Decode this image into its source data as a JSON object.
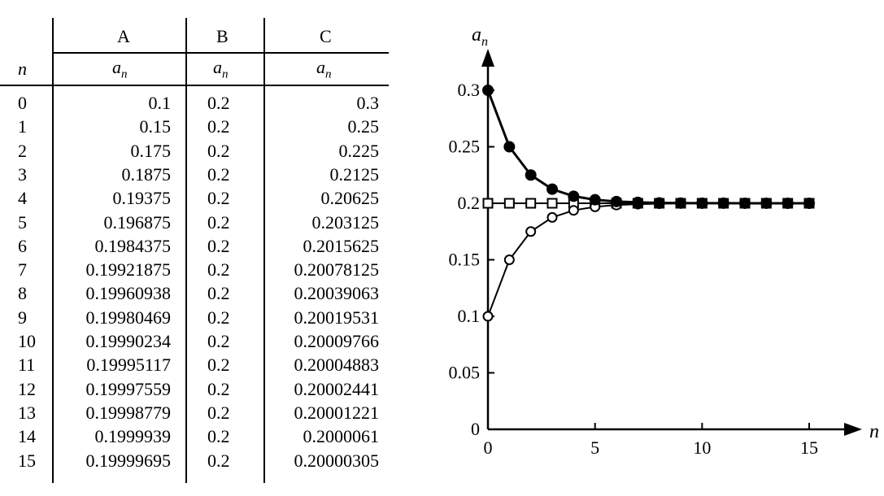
{
  "table": {
    "headers": {
      "n": "n",
      "columns": [
        {
          "label": "A",
          "sub": "a",
          "sub_index": "n"
        },
        {
          "label": "B",
          "sub": "a",
          "sub_index": "n"
        },
        {
          "label": "C",
          "sub": "a",
          "sub_index": "n"
        }
      ]
    },
    "rows": [
      [
        "0",
        "0.1",
        "0.2",
        "0.3"
      ],
      [
        "1",
        "0.15",
        "0.2",
        "0.25"
      ],
      [
        "2",
        "0.175",
        "0.2",
        "0.225"
      ],
      [
        "3",
        "0.1875",
        "0.2",
        "0.2125"
      ],
      [
        "4",
        "0.19375",
        "0.2",
        "0.20625"
      ],
      [
        "5",
        "0.196875",
        "0.2",
        "0.203125"
      ],
      [
        "6",
        "0.1984375",
        "0.2",
        "0.2015625"
      ],
      [
        "7",
        "0.19921875",
        "0.2",
        "0.20078125"
      ],
      [
        "8",
        "0.19960938",
        "0.2",
        "0.20039063"
      ],
      [
        "9",
        "0.19980469",
        "0.2",
        "0.20019531"
      ],
      [
        "10",
        "0.19990234",
        "0.2",
        "0.20009766"
      ],
      [
        "11",
        "0.19995117",
        "0.2",
        "0.20004883"
      ],
      [
        "12",
        "0.19997559",
        "0.2",
        "0.20002441"
      ],
      [
        "13",
        "0.19998779",
        "0.2",
        "0.20001221"
      ],
      [
        "14",
        "0.1999939",
        "0.2",
        "0.2000061"
      ],
      [
        "15",
        "0.19999695",
        "0.2",
        "0.20000305"
      ]
    ]
  },
  "chart_data": {
    "type": "line",
    "xlabel": "n",
    "ylabel": "a",
    "ylabel_sub": "n",
    "xlim": [
      0,
      15
    ],
    "ylim": [
      0,
      0.3
    ],
    "x_ticks": [
      "0",
      "5",
      "10",
      "15"
    ],
    "y_ticks": [
      "0",
      "0.05",
      "0.1",
      "0.15",
      "0.2",
      "0.25",
      "0.3"
    ],
    "grid": false,
    "series": [
      {
        "marker": "open-circle",
        "x": [
          0,
          1,
          2,
          3,
          4,
          5,
          6,
          7,
          8,
          9,
          10,
          11,
          12,
          13,
          14,
          15
        ],
        "values": [
          0.1,
          0.15,
          0.175,
          0.1875,
          0.19375,
          0.196875,
          0.1984375,
          0.19921875,
          0.19960938,
          0.19980469,
          0.19990234,
          0.19995117,
          0.19997559,
          0.19998779,
          0.1999939,
          0.19999695
        ]
      },
      {
        "marker": "open-square",
        "x": [
          0,
          1,
          2,
          3,
          4,
          5,
          6,
          7,
          8,
          9,
          10,
          11,
          12,
          13,
          14,
          15
        ],
        "values": [
          0.2,
          0.2,
          0.2,
          0.2,
          0.2,
          0.2,
          0.2,
          0.2,
          0.2,
          0.2,
          0.2,
          0.2,
          0.2,
          0.2,
          0.2,
          0.2
        ]
      },
      {
        "marker": "filled-circle",
        "x": [
          0,
          1,
          2,
          3,
          4,
          5,
          6,
          7,
          8,
          9,
          10,
          11,
          12,
          13,
          14,
          15
        ],
        "values": [
          0.3,
          0.25,
          0.225,
          0.2125,
          0.20625,
          0.203125,
          0.2015625,
          0.20078125,
          0.20039063,
          0.20019531,
          0.20009766,
          0.20004883,
          0.20002441,
          0.20001221,
          0.2000061,
          0.20000305
        ]
      }
    ],
    "colors": {
      "line": "#000000",
      "background": "#ffffff"
    }
  }
}
